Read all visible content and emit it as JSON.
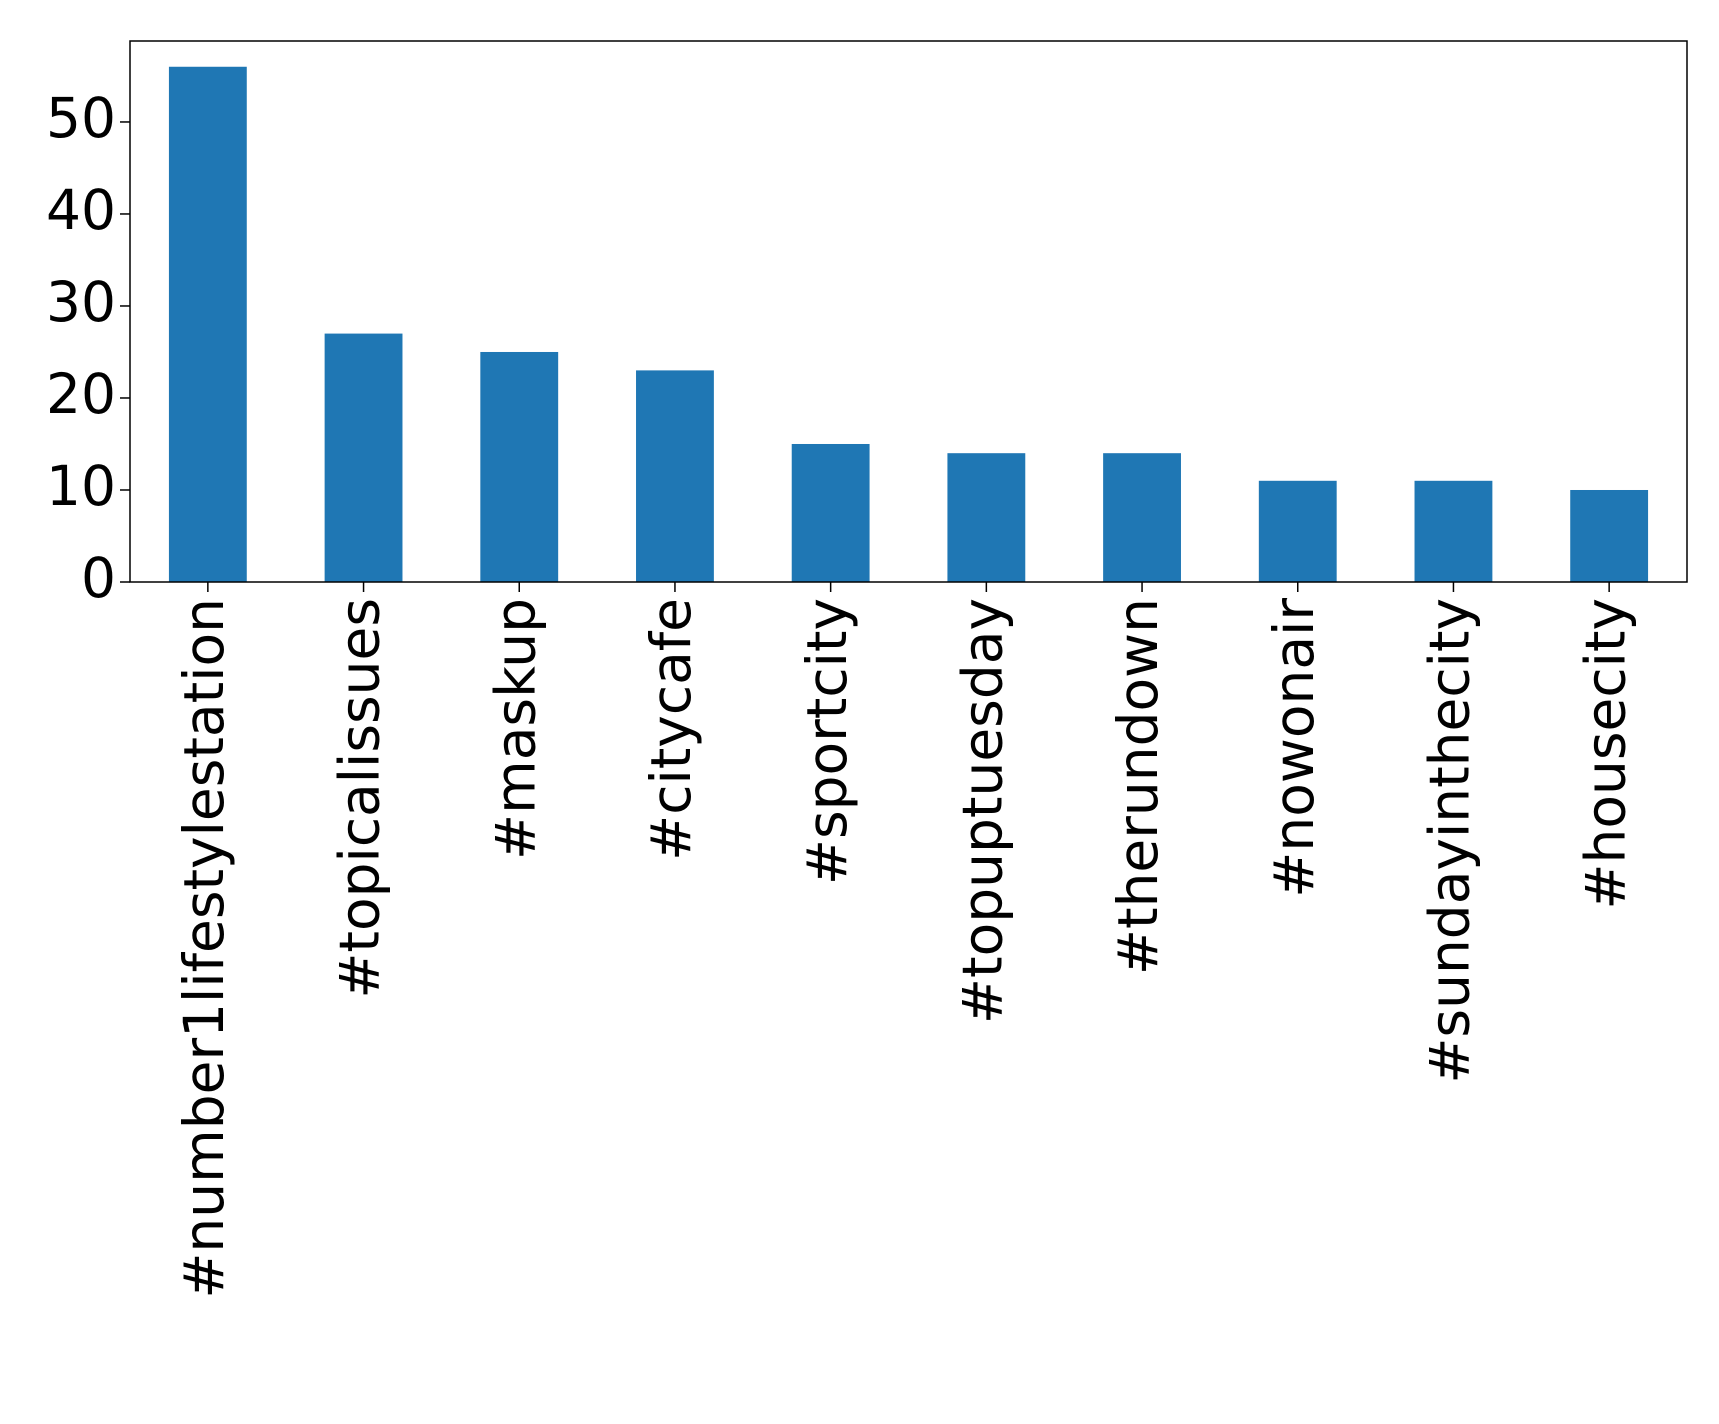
{
  "chart_data": {
    "type": "bar",
    "categories": [
      "#number1lifestylestation",
      "#topicalissues",
      "#maskup",
      "#citycafe",
      "#sportcity",
      "#topuptuesday",
      "#therundown",
      "#nowonair",
      "#sundayinthecity",
      "#housecity"
    ],
    "values": [
      56,
      27,
      25,
      23,
      15,
      14,
      14,
      11,
      11,
      10
    ],
    "color": "#1f77b4",
    "ylim": [
      0,
      58.8
    ],
    "yticks": [
      0,
      10,
      20,
      30,
      40,
      50
    ],
    "grid": false
  }
}
